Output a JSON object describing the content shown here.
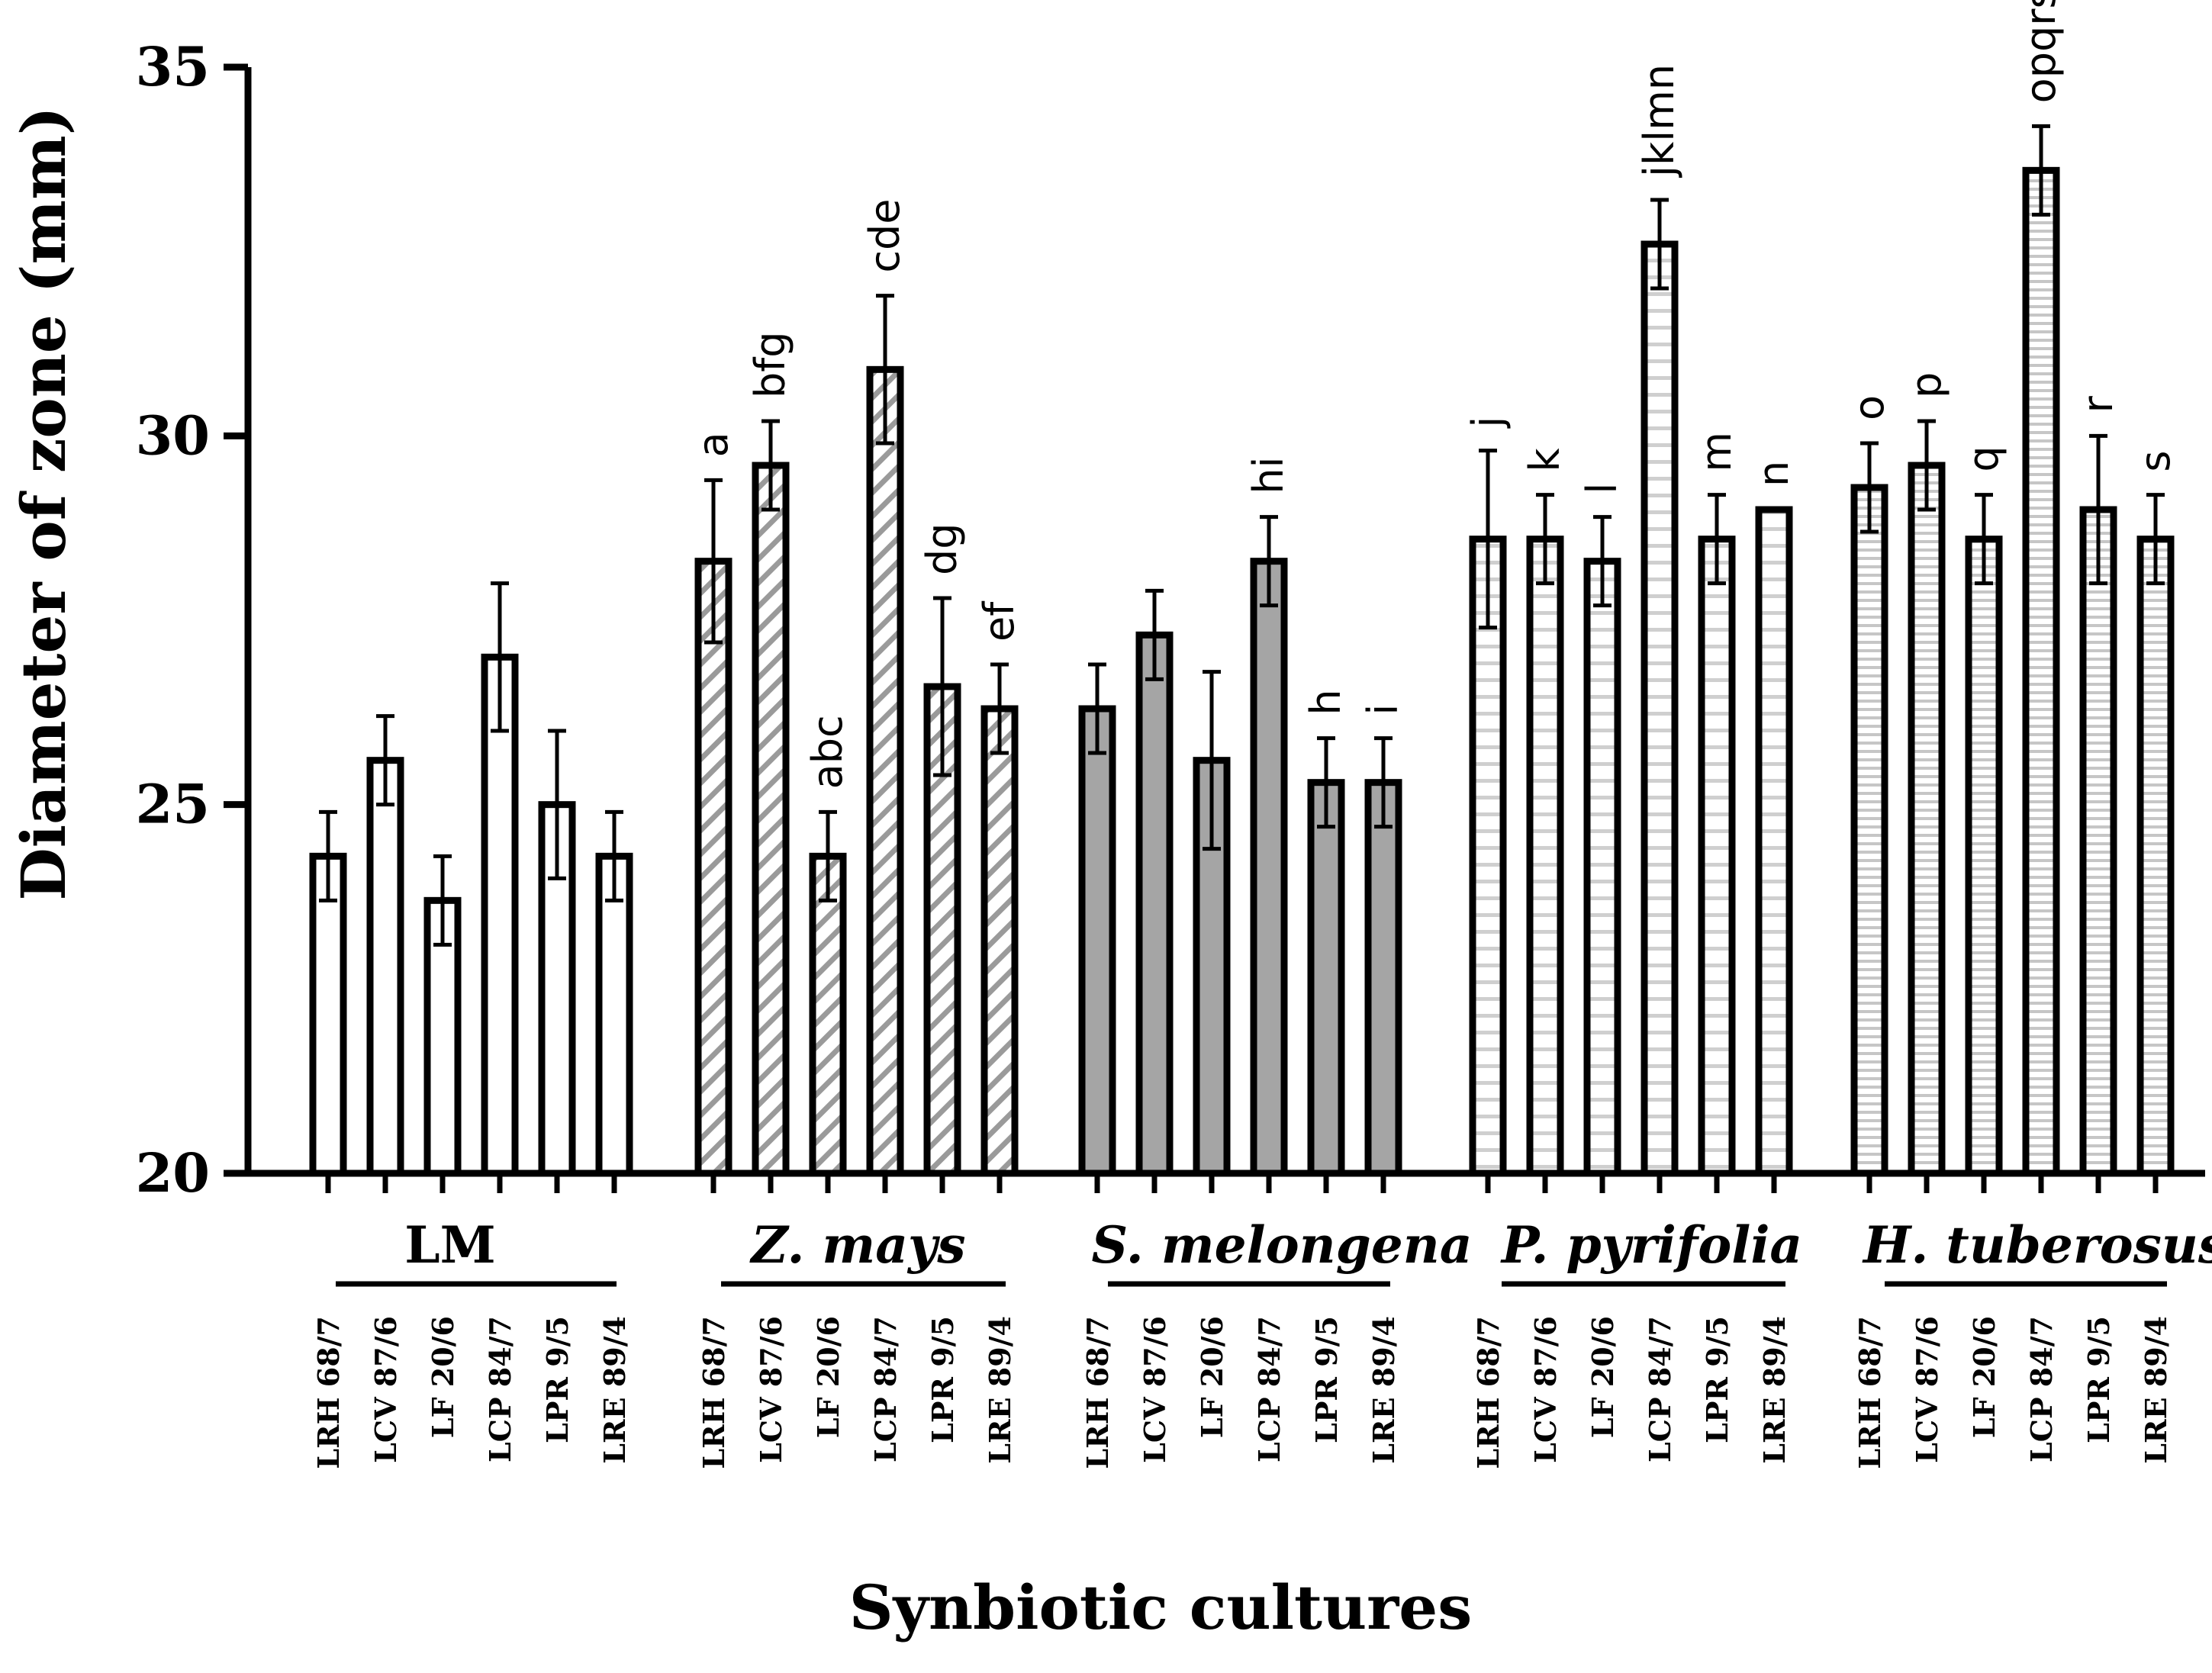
{
  "chart_data": {
    "type": "bar",
    "title": "",
    "ylabel": "Diameter of zone (mm)",
    "xlabel": "Synbiotic cultures",
    "ylim": [
      20,
      35
    ],
    "yticks": [
      "20",
      "25",
      "30",
      "35"
    ],
    "categories": [
      "LRH 68/7",
      "LCV 87/6",
      "LF 20/6",
      "LCP 84/7",
      "LPR 9/5",
      "LRE 89/4"
    ],
    "groups": [
      {
        "name": "LM",
        "italic": false,
        "pattern": "white",
        "values": [
          24.3,
          25.6,
          23.7,
          27.0,
          25.0,
          24.3
        ],
        "errors": [
          0.6,
          0.6,
          0.6,
          1.0,
          1.0,
          0.6
        ],
        "letters": [
          "",
          "",
          "",
          "",
          "",
          ""
        ]
      },
      {
        "name": "Z. mays",
        "italic": true,
        "pattern": "diagonal",
        "values": [
          28.3,
          29.6,
          24.3,
          30.9,
          26.6,
          26.3
        ],
        "errors": [
          1.1,
          0.6,
          0.6,
          1.0,
          1.2,
          0.6
        ],
        "letters": [
          "a",
          "bfg",
          "abc",
          "cde",
          "dg",
          "ef"
        ]
      },
      {
        "name": "S. melongena",
        "italic": true,
        "pattern": "grey",
        "values": [
          26.3,
          27.3,
          25.6,
          28.3,
          25.3,
          25.3
        ],
        "errors": [
          0.6,
          0.6,
          1.2,
          0.6,
          0.6,
          0.6
        ],
        "letters": [
          "",
          "",
          "",
          "hi",
          "h",
          "i"
        ]
      },
      {
        "name": "P.  pyrifolia",
        "italic": true,
        "pattern": "horizontal",
        "values": [
          28.6,
          28.6,
          28.3,
          32.6,
          28.6,
          29.0
        ],
        "errors": [
          1.2,
          0.6,
          0.6,
          0.6,
          0.6,
          0.0
        ],
        "letters": [
          "j",
          "k",
          "l",
          "jklmn",
          "m",
          "n"
        ]
      },
      {
        "name": "H. tuberosus",
        "italic": true,
        "pattern": "horizontal-dense",
        "values": [
          29.3,
          29.6,
          28.6,
          33.6,
          29.0,
          28.6
        ],
        "errors": [
          0.6,
          0.6,
          0.6,
          0.6,
          1.0,
          0.6
        ],
        "letters": [
          "o",
          "p",
          "q",
          "opqrs",
          "r",
          "s"
        ]
      }
    ]
  }
}
